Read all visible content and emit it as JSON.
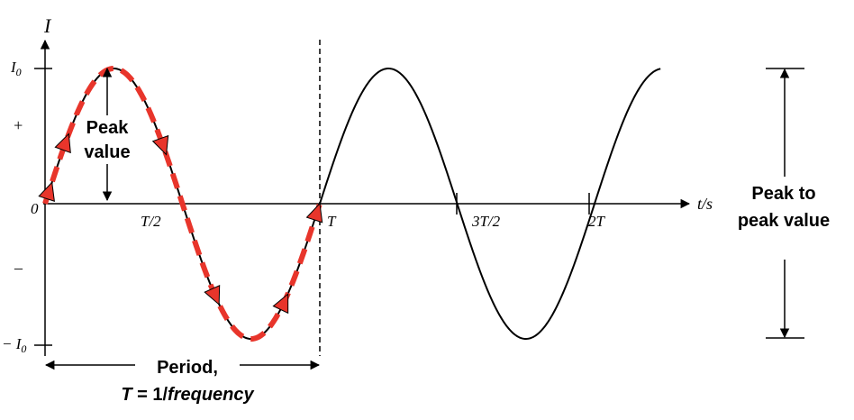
{
  "axes": {
    "y_label": "I",
    "x_label": "t/s",
    "origin": "0",
    "y_top": "I",
    "y_top_sub": "0",
    "y_plus": "+",
    "y_minus": "–",
    "y_bottom_prefix": "− I",
    "y_bottom_sub": "0"
  },
  "ticks": [
    "T/2",
    "T",
    "3T/2",
    "2T"
  ],
  "labels": {
    "peak_line1": "Peak",
    "peak_line2": "value",
    "ptp_line1": "Peak to",
    "ptp_line2": "peak value",
    "period_line1": "Period,",
    "period_T": "T",
    "period_eq": " = 1/",
    "period_freq": "frequency"
  },
  "colors": {
    "curve": "#000000",
    "highlight": "#e8352b"
  }
}
